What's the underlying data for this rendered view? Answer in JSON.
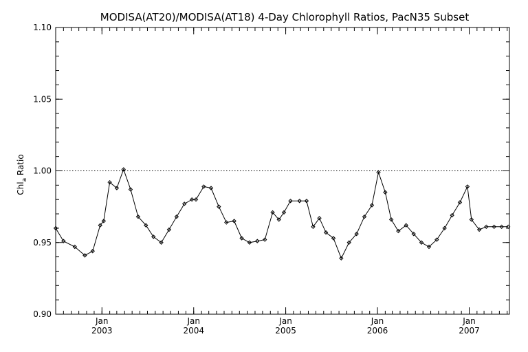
{
  "chart_data": {
    "type": "line",
    "title": "MODISA(AT20)/MODISA(AT18) 4-Day Chlorophyll Ratios, PacN35 Subset",
    "ylabel": "Chl_a Ratio",
    "ylabel_main": "Chl",
    "ylabel_sub": "a",
    "ylabel_tail": " Ratio",
    "xlabel": "",
    "xlim": [
      "2002-07-01",
      "2007-06-10"
    ],
    "ylim": [
      0.9,
      1.1
    ],
    "yticks": [
      0.9,
      0.95,
      1.0,
      1.05,
      1.1
    ],
    "ytick_labels": [
      "0.90",
      "0.95",
      "1.00",
      "1.05",
      "1.10"
    ],
    "xticks": [
      {
        "date": "2003-01-01",
        "month": "Jan",
        "year": "2003"
      },
      {
        "date": "2004-01-01",
        "month": "Jan",
        "year": "2004"
      },
      {
        "date": "2005-01-01",
        "month": "Jan",
        "year": "2005"
      },
      {
        "date": "2006-01-01",
        "month": "Jan",
        "year": "2006"
      },
      {
        "date": "2007-01-01",
        "month": "Jan",
        "year": "2007"
      }
    ],
    "reference_line": {
      "y": 1.0,
      "style": "dotted"
    },
    "grid": false,
    "series": [
      {
        "marker": "diamond",
        "x": [
          "2002-07-01",
          "2002-08-01",
          "2002-09-15",
          "2002-10-25",
          "2002-11-25",
          "2002-12-25",
          "2003-01-08",
          "2003-02-01",
          "2003-03-01",
          "2003-03-28",
          "2003-04-25",
          "2003-05-25",
          "2003-06-25",
          "2003-07-25",
          "2003-08-25",
          "2003-09-25",
          "2003-10-25",
          "2003-11-25",
          "2003-12-25",
          "2004-01-10",
          "2004-02-10",
          "2004-03-10",
          "2004-04-10",
          "2004-05-10",
          "2004-06-10",
          "2004-07-10",
          "2004-08-10",
          "2004-09-10",
          "2004-10-10",
          "2004-11-10",
          "2004-12-05",
          "2004-12-25",
          "2005-01-20",
          "2005-02-25",
          "2005-03-25",
          "2005-04-20",
          "2005-05-15",
          "2005-06-10",
          "2005-07-10",
          "2005-08-10",
          "2005-09-10",
          "2005-10-10",
          "2005-11-10",
          "2005-12-10",
          "2006-01-05",
          "2006-02-01",
          "2006-02-25",
          "2006-03-25",
          "2006-04-25",
          "2006-05-25",
          "2006-06-25",
          "2006-07-25",
          "2006-08-25",
          "2006-09-25",
          "2006-10-25",
          "2006-11-25",
          "2006-12-25",
          "2007-01-10",
          "2007-02-10",
          "2007-03-10",
          "2007-04-10",
          "2007-05-10",
          "2007-06-05"
        ],
        "y": [
          0.96,
          0.951,
          0.947,
          0.941,
          0.944,
          0.962,
          0.965,
          0.992,
          0.988,
          1.001,
          0.987,
          0.968,
          0.962,
          0.954,
          0.95,
          0.959,
          0.968,
          0.977,
          0.98,
          0.98,
          0.989,
          0.988,
          0.975,
          0.964,
          0.965,
          0.953,
          0.95,
          0.951,
          0.952,
          0.971,
          0.966,
          0.971,
          0.979,
          0.979,
          0.979,
          0.961,
          0.967,
          0.957,
          0.953,
          0.939,
          0.95,
          0.956,
          0.968,
          0.976,
          0.999,
          0.985,
          0.966,
          0.958,
          0.962,
          0.956,
          0.95,
          0.947,
          0.952,
          0.96,
          0.969,
          0.978,
          0.989,
          0.966,
          0.959,
          0.961,
          0.961,
          0.961,
          0.961
        ]
      }
    ]
  }
}
